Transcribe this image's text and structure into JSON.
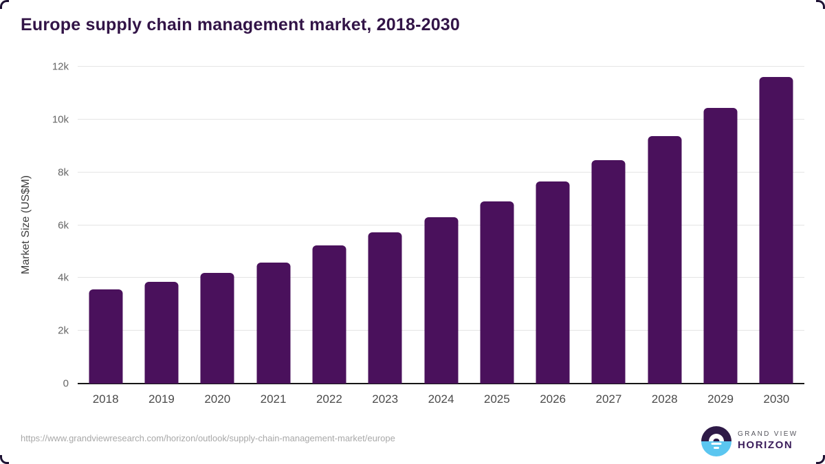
{
  "header": {
    "title": "Europe supply chain management market, 2018-2030"
  },
  "chart_data": {
    "type": "bar",
    "title": "Europe supply chain management market, 2018-2030",
    "categories": [
      "2018",
      "2019",
      "2020",
      "2021",
      "2022",
      "2023",
      "2024",
      "2025",
      "2026",
      "2027",
      "2028",
      "2029",
      "2030"
    ],
    "values": [
      3570,
      3850,
      4180,
      4580,
      5230,
      5730,
      6300,
      6910,
      7650,
      8450,
      9370,
      10440,
      11620
    ],
    "series_name": "Market Size",
    "xlabel": "",
    "ylabel": "Market Size (US$M)",
    "ylim": [
      0,
      12000
    ],
    "yticks": [
      {
        "value": 0,
        "label": "0"
      },
      {
        "value": 2000,
        "label": "2k"
      },
      {
        "value": 4000,
        "label": "4k"
      },
      {
        "value": 6000,
        "label": "6k"
      },
      {
        "value": 8000,
        "label": "8k"
      },
      {
        "value": 10000,
        "label": "10k"
      },
      {
        "value": 12000,
        "label": "12k"
      }
    ],
    "grid": "horizontal-light",
    "legend": "none",
    "bar_color": "#4a115c"
  },
  "footer": {
    "source_url": "https://www.grandviewresearch.com/horizon/outlook/supply-chain-management-market/europe",
    "logo": {
      "top_text": "GRAND VIEW",
      "bottom_text": "HORIZON"
    }
  },
  "colors": {
    "title_text": "#321447",
    "bar": "#4a115c",
    "axis_line": "#161616",
    "gridline": "#e4e4e4",
    "y_tick_text": "#666666",
    "x_tick_text": "#4a4a4a",
    "axis_title_text": "#3d3d3d",
    "url_text": "#a8a8a8",
    "logo_purple": "#2e1a47",
    "logo_blue": "#5bc6f0",
    "logo_gray_text": "#55555d"
  }
}
